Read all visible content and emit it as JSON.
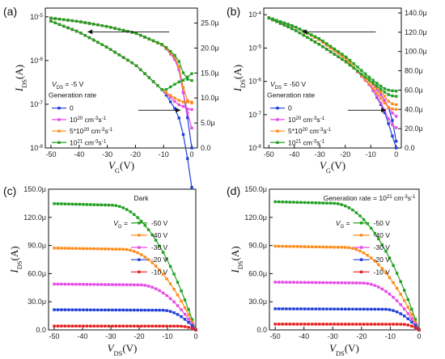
{
  "figure": {
    "panels": [
      {
        "letter": "(a)"
      },
      {
        "letter": "(b)"
      },
      {
        "letter": "(c)"
      },
      {
        "letter": "(d)"
      }
    ]
  },
  "chart_data": [
    {
      "type": "line",
      "panel": "(a)",
      "xlabel": "VG(V)",
      "ylabel_left": "IDS(A)",
      "x_ticks": [
        "-50",
        "-40",
        "-30",
        "-20",
        "-10",
        "0"
      ],
      "xlim": [
        -52,
        2
      ],
      "log_ticks": [
        "10-5",
        "10-6",
        "10-7",
        "10-8"
      ],
      "log_ylim_exp": [
        -8,
        -4.8
      ],
      "right_ticks": [
        "0.0",
        "5.0μ",
        "10.0μ",
        "15.0μ",
        "20.0μ",
        "25.0μ"
      ],
      "right_ylim": [
        0,
        28
      ],
      "annotation": "VDS = -5 V",
      "legend_title": "Generation rate",
      "series": [
        {
          "name": "0",
          "color": "#1f3fd8",
          "marker": "square",
          "log_x": [
            -50,
            -40,
            -30,
            -20,
            -10,
            -5,
            -3,
            -2,
            -1,
            0
          ],
          "log_y_exp": [
            -5.1,
            -5.35,
            -5.7,
            -6.1,
            -6.7,
            -7.2,
            -7.7,
            -8.0,
            -8.5,
            -8.9
          ],
          "lin_x": [
            -50,
            -40,
            -30,
            -20,
            -10,
            -5,
            -3,
            -2,
            -1,
            0
          ],
          "lin_y": [
            26,
            25.3,
            24.3,
            23,
            20.5,
            17,
            11,
            8,
            4,
            0
          ]
        },
        {
          "name": "10^20 cm-3s-1",
          "color": "#e64ae6",
          "marker": "square",
          "log_x": [
            -50,
            -40,
            -30,
            -20,
            -10,
            -5,
            -3,
            -2,
            -1,
            0
          ],
          "log_y_exp": [
            -5.1,
            -5.35,
            -5.7,
            -6.1,
            -6.7,
            -7.0,
            -7.05,
            -7.1,
            -7.12,
            -7.12
          ],
          "lin_x": [
            -50,
            -40,
            -30,
            -20,
            -10,
            -5,
            -3,
            -2,
            -1,
            0
          ],
          "lin_y": [
            26,
            25.3,
            24.3,
            23,
            20.5,
            17,
            11,
            8.5,
            5.5,
            4
          ]
        },
        {
          "name": "5*10^20 cm-3s-1",
          "color": "#ff8c1a",
          "marker": "square",
          "log_x": [
            -50,
            -40,
            -30,
            -20,
            -10,
            -5,
            -3,
            -2,
            -1,
            0
          ],
          "log_y_exp": [
            -5.1,
            -5.35,
            -5.7,
            -6.1,
            -6.7,
            -6.9,
            -6.95,
            -6.95,
            -6.95,
            -6.95
          ],
          "lin_x": [
            -50,
            -40,
            -30,
            -20,
            -10,
            -5,
            -3,
            -2,
            -1,
            0
          ],
          "lin_y": [
            26,
            25.3,
            24.3,
            23,
            20.5,
            17.5,
            12,
            10,
            9,
            9
          ]
        },
        {
          "name": "10^21 cm-3s-1",
          "color": "#22a022",
          "marker": "square",
          "log_x": [
            -50,
            -40,
            -30,
            -20,
            -10,
            -5,
            -3,
            -2,
            -1,
            0
          ],
          "log_y_exp": [
            -5.1,
            -5.35,
            -5.7,
            -6.1,
            -6.7,
            -6.5,
            -6.45,
            -6.4,
            -6.35,
            -6.3
          ],
          "lin_x": [
            -50,
            -40,
            -30,
            -20,
            -10,
            -5,
            -3,
            -2,
            -1,
            0
          ],
          "lin_y": [
            26,
            25.3,
            24.3,
            23,
            20.6,
            18,
            15,
            14,
            13.5,
            13.5
          ]
        }
      ]
    },
    {
      "type": "line",
      "panel": "(b)",
      "xlabel": "VG(V)",
      "ylabel_left": "IDS(A)",
      "x_ticks": [
        "-50",
        "-40",
        "-30",
        "-20",
        "-10",
        "0"
      ],
      "xlim": [
        -52,
        2
      ],
      "log_ticks": [
        "10-4",
        "10-5",
        "10-6",
        "10-7",
        "10-8"
      ],
      "log_ylim_exp": [
        -8,
        -3.8
      ],
      "right_ticks": [
        "0.0",
        "20.0μ",
        "40.0μ",
        "60.0μ",
        "80.0μ",
        "100.0μ",
        "120.0μ",
        "140.0μ"
      ],
      "right_ylim": [
        0,
        145
      ],
      "annotation": "VDS = -50 V",
      "legend_title": "Generation rate",
      "series": [
        {
          "name": "0",
          "color": "#1f3fd8",
          "marker": "square",
          "log_x": [
            -50,
            -40,
            -30,
            -20,
            -10,
            -5,
            -3,
            -1,
            0
          ],
          "log_y_exp": [
            -4.1,
            -4.45,
            -4.9,
            -5.4,
            -6.0,
            -6.5,
            -6.8,
            -7.3,
            -7.8
          ],
          "lin_x": [
            -50,
            -40,
            -30,
            -20,
            -10,
            -5,
            -3,
            -1,
            0
          ],
          "lin_y": [
            135,
            126,
            112,
            93,
            64,
            40,
            25,
            8,
            0
          ]
        },
        {
          "name": "10^20 cm-3s-1",
          "color": "#e64ae6",
          "marker": "square",
          "log_x": [
            -50,
            -40,
            -30,
            -20,
            -10,
            -5,
            -3,
            -1,
            0
          ],
          "log_y_exp": [
            -4.1,
            -4.45,
            -4.9,
            -5.4,
            -6.0,
            -6.5,
            -6.8,
            -7.0,
            -7.05
          ],
          "lin_x": [
            -50,
            -40,
            -30,
            -20,
            -10,
            -5,
            -3,
            -1,
            0
          ],
          "lin_y": [
            135,
            126,
            112,
            93,
            64,
            42,
            30,
            22,
            21
          ]
        },
        {
          "name": "5*10^20 cm-3s-1",
          "color": "#ff8c1a",
          "marker": "square",
          "log_x": [
            -50,
            -40,
            -30,
            -20,
            -10,
            -5,
            -3,
            -1,
            0
          ],
          "log_y_exp": [
            -4.1,
            -4.45,
            -4.9,
            -5.4,
            -6.0,
            -6.4,
            -6.6,
            -6.7,
            -6.7
          ],
          "lin_x": [
            -50,
            -40,
            -30,
            -20,
            -10,
            -5,
            -3,
            -1,
            0
          ],
          "lin_y": [
            135,
            126,
            112,
            93,
            65,
            48,
            42,
            40,
            40
          ]
        },
        {
          "name": "10^21 cm-3s-1",
          "color": "#22a022",
          "marker": "square",
          "log_x": [
            -50,
            -40,
            -30,
            -20,
            -10,
            -5,
            -3,
            -1,
            0
          ],
          "log_y_exp": [
            -4.1,
            -4.45,
            -4.9,
            -5.4,
            -6.0,
            -6.3,
            -6.4,
            -6.45,
            -6.45
          ],
          "lin_x": [
            -50,
            -40,
            -30,
            -20,
            -10,
            -5,
            -3,
            -1,
            0
          ],
          "lin_y": [
            135,
            126,
            113,
            95,
            72,
            62,
            60,
            59,
            59
          ]
        }
      ]
    },
    {
      "type": "line",
      "panel": "(c)",
      "xlabel": "VDS(V)",
      "ylabel": "IDS(A)",
      "x_ticks": [
        "-50",
        "-40",
        "-30",
        "-20",
        "-10",
        "0"
      ],
      "xlim": [
        -52,
        0
      ],
      "y_ticks": [
        "0.0",
        "30.0μ",
        "60.0μ",
        "90.0μ",
        "120.0μ",
        "150.0μ"
      ],
      "ylim": [
        0,
        150
      ],
      "title_note": "Dark",
      "legend_prefix": "VG =",
      "series": [
        {
          "name": "-50 V",
          "color": "#22a022",
          "sat": 133,
          "vth_gap": 30
        },
        {
          "name": "-40 V",
          "color": "#ff8c1a",
          "sat": 86,
          "vth_gap": 26
        },
        {
          "name": "-30 V",
          "color": "#e64ae6",
          "sat": 48,
          "vth_gap": 20
        },
        {
          "name": "-20 V",
          "color": "#1f3fd8",
          "sat": 21,
          "vth_gap": 12
        },
        {
          "name": "-10 V",
          "color": "#e62020",
          "sat": 4,
          "vth_gap": 6
        }
      ]
    },
    {
      "type": "line",
      "panel": "(d)",
      "xlabel": "VDS(V)",
      "ylabel": "IDS(A)",
      "x_ticks": [
        "-50",
        "-40",
        "-30",
        "-20",
        "-10",
        "0"
      ],
      "xlim": [
        -52,
        0
      ],
      "y_ticks": [
        "0.0",
        "30.0μ",
        "60.0μ",
        "90.0μ",
        "120.0μ",
        "150.0μ"
      ],
      "ylim": [
        0,
        150
      ],
      "title_note": "Generation rate = 10^21 cm-3s-1",
      "legend_prefix": "VG =",
      "series": [
        {
          "name": "-50 V",
          "color": "#22a022",
          "sat": 135,
          "vth_gap": 30
        },
        {
          "name": "-40 V",
          "color": "#ff8c1a",
          "sat": 88,
          "vth_gap": 26
        },
        {
          "name": "-30 V",
          "color": "#e64ae6",
          "sat": 50,
          "vth_gap": 20
        },
        {
          "name": "-20 V",
          "color": "#1f3fd8",
          "sat": 22,
          "vth_gap": 12
        },
        {
          "name": "-10 V",
          "color": "#e62020",
          "sat": 6,
          "vth_gap": 6
        }
      ]
    }
  ]
}
